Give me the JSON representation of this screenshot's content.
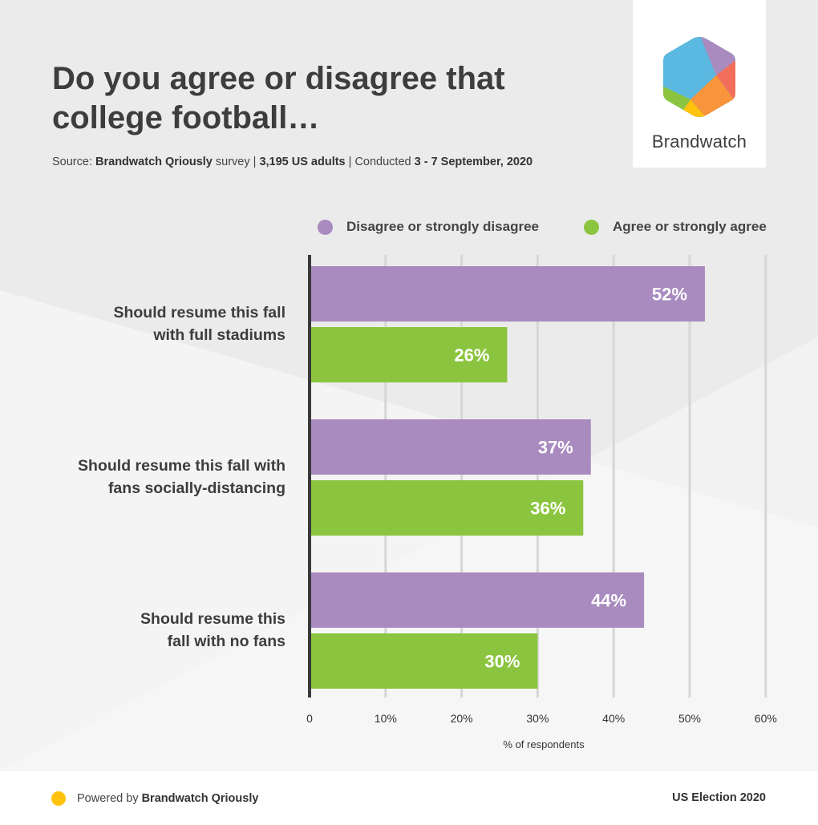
{
  "header": {
    "title": "Do you agree or disagree that college football…",
    "source": {
      "prefix": "Source:",
      "brand": "Brandwatch Qriously",
      "survey": "survey |",
      "sample": "3,195 US adults",
      "conducted": "| Conducted",
      "dates": "3 - 7 September, 2020"
    }
  },
  "logo": {
    "text": "Brandwatch"
  },
  "colors": {
    "disagree": "#a98bbf",
    "agree": "#8bc53f",
    "axis": "#3a3a3a",
    "grid": "#d6d6d6",
    "footer_dot": "#ffc20e"
  },
  "legend": [
    {
      "label": "Disagree or strongly disagree"
    },
    {
      "label": "Agree or strongly agree"
    }
  ],
  "chart_data": {
    "type": "bar",
    "orientation": "horizontal",
    "categories": [
      [
        "Should resume this fall",
        "with full stadiums"
      ],
      [
        "Should resume this fall with",
        "fans socially-distancing"
      ],
      [
        "Should resume this",
        "fall with no fans"
      ]
    ],
    "series": [
      {
        "name": "Disagree or strongly disagree",
        "values": [
          52,
          37,
          44
        ],
        "labels": [
          "52%",
          "37%",
          "44%"
        ]
      },
      {
        "name": "Agree or strongly agree",
        "values": [
          26,
          36,
          30
        ],
        "labels": [
          "26%",
          "36%",
          "30%"
        ]
      }
    ],
    "xlim": [
      0,
      60
    ],
    "xticks": [
      0,
      10,
      20,
      30,
      40,
      50,
      60
    ],
    "xtick_labels": [
      "0",
      "10%",
      "20%",
      "30%",
      "40%",
      "50%",
      "60%"
    ],
    "xlabel": "% of respondents",
    "grid": true,
    "legend_position": "top-right"
  },
  "footer": {
    "powered_prefix": "Powered by",
    "powered_brand": "Brandwatch Qriously",
    "right": "US Election 2020"
  }
}
